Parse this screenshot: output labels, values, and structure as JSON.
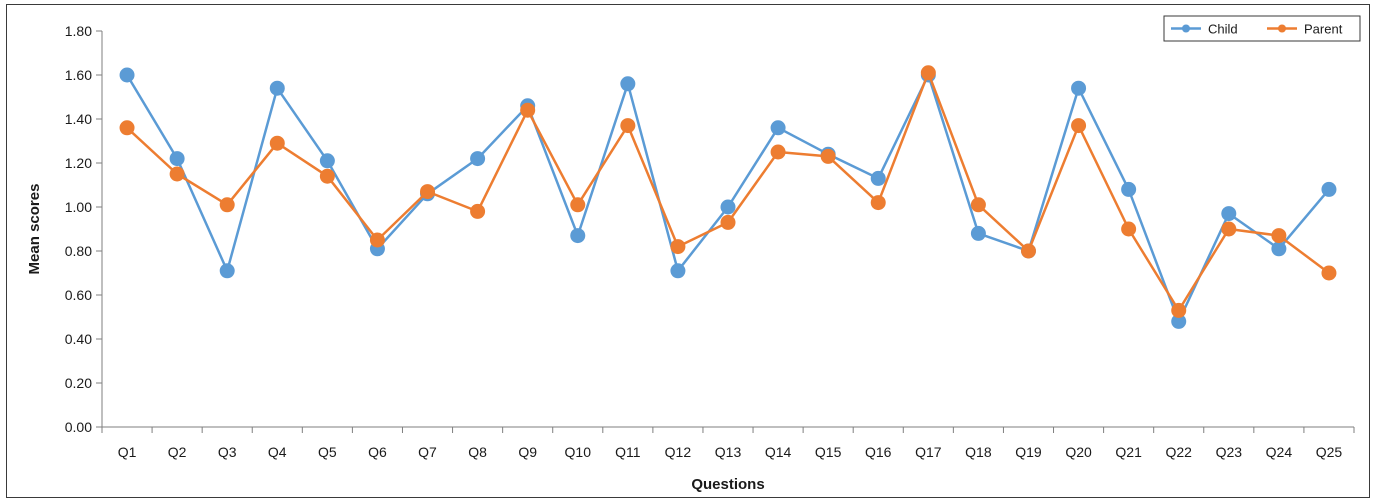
{
  "chart_data": {
    "type": "line",
    "title": "",
    "xlabel": "Questions",
    "ylabel": "Mean scores",
    "ylim": [
      0,
      1.8
    ],
    "yticks": [
      "0.00",
      "0.20",
      "0.40",
      "0.60",
      "0.80",
      "1.00",
      "1.20",
      "1.40",
      "1.60",
      "1.80"
    ],
    "grid": false,
    "legend_position": "top-right",
    "categories": [
      "Q1",
      "Q2",
      "Q3",
      "Q4",
      "Q5",
      "Q6",
      "Q7",
      "Q8",
      "Q9",
      "Q10",
      "Q11",
      "Q12",
      "Q13",
      "Q14",
      "Q15",
      "Q16",
      "Q17",
      "Q18",
      "Q19",
      "Q20",
      "Q21",
      "Q22",
      "Q23",
      "Q24",
      "Q25"
    ],
    "series": [
      {
        "name": "Child",
        "color": "#5b9bd5",
        "values": [
          1.6,
          1.22,
          0.71,
          1.54,
          1.21,
          0.81,
          1.06,
          1.22,
          1.46,
          0.87,
          1.56,
          0.71,
          1.0,
          1.36,
          1.24,
          1.13,
          1.6,
          0.88,
          0.8,
          1.54,
          1.08,
          0.48,
          0.97,
          0.81,
          1.08
        ]
      },
      {
        "name": "Parent",
        "color": "#ed7d31",
        "values": [
          1.36,
          1.15,
          1.01,
          1.29,
          1.14,
          0.85,
          1.07,
          0.98,
          1.44,
          1.01,
          1.37,
          0.82,
          0.93,
          1.25,
          1.23,
          1.02,
          1.61,
          1.01,
          0.8,
          1.37,
          0.9,
          0.53,
          0.9,
          0.87,
          0.7
        ]
      }
    ]
  }
}
